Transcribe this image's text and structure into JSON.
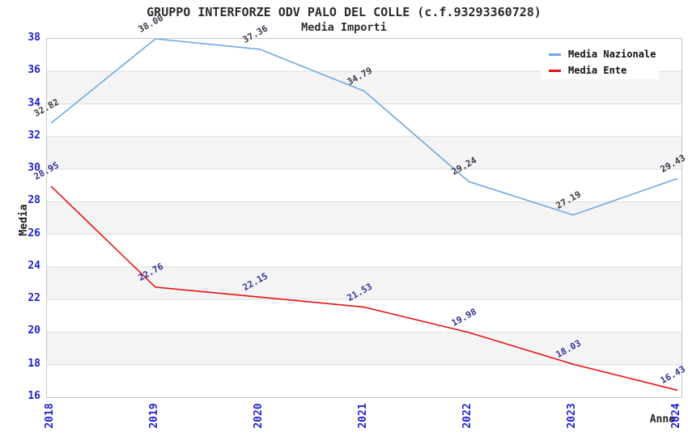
{
  "chart_data": {
    "type": "line",
    "title": "GRUPPO INTERFORZE ODV PALO DEL COLLE (c.f.93293360728)",
    "subtitle": "Media Importi",
    "xlabel": "Anno",
    "ylabel": "Media",
    "categories": [
      "2018",
      "2019",
      "2020",
      "2021",
      "2022",
      "2023",
      "2024"
    ],
    "ylim": [
      16,
      38
    ],
    "ytick_step": 2,
    "grid": "horizontal-bands-alternating",
    "legend_position": "top-right-inside",
    "series": [
      {
        "name": "Media Nazionale",
        "color": "#6FA8E0",
        "label_color": "#3A3A4A",
        "values": [
          32.82,
          38.0,
          37.36,
          34.79,
          29.24,
          27.19,
          29.43
        ],
        "value_labels": [
          "32.82",
          "38.00",
          "37.36",
          "34.79",
          "29.24",
          "27.19",
          "29.43"
        ]
      },
      {
        "name": "Media Ente",
        "color": "#E51212",
        "label_color": "#333399",
        "values": [
          28.95,
          22.76,
          22.15,
          21.53,
          19.98,
          18.03,
          16.43
        ],
        "value_labels": [
          "28.95",
          "22.76",
          "22.15",
          "21.53",
          "19.98",
          "18.03",
          "16.43"
        ]
      }
    ],
    "colors": {
      "tick_label": "#2222CE",
      "axis_title": "#222222",
      "title_text": "#2B2B2B",
      "band_alt": "#F4F4F4",
      "grid_line": "#DDDDDD",
      "plot_border": "#C6C6C6",
      "legend_text": "#111111",
      "background": "#FFFFFF"
    }
  }
}
